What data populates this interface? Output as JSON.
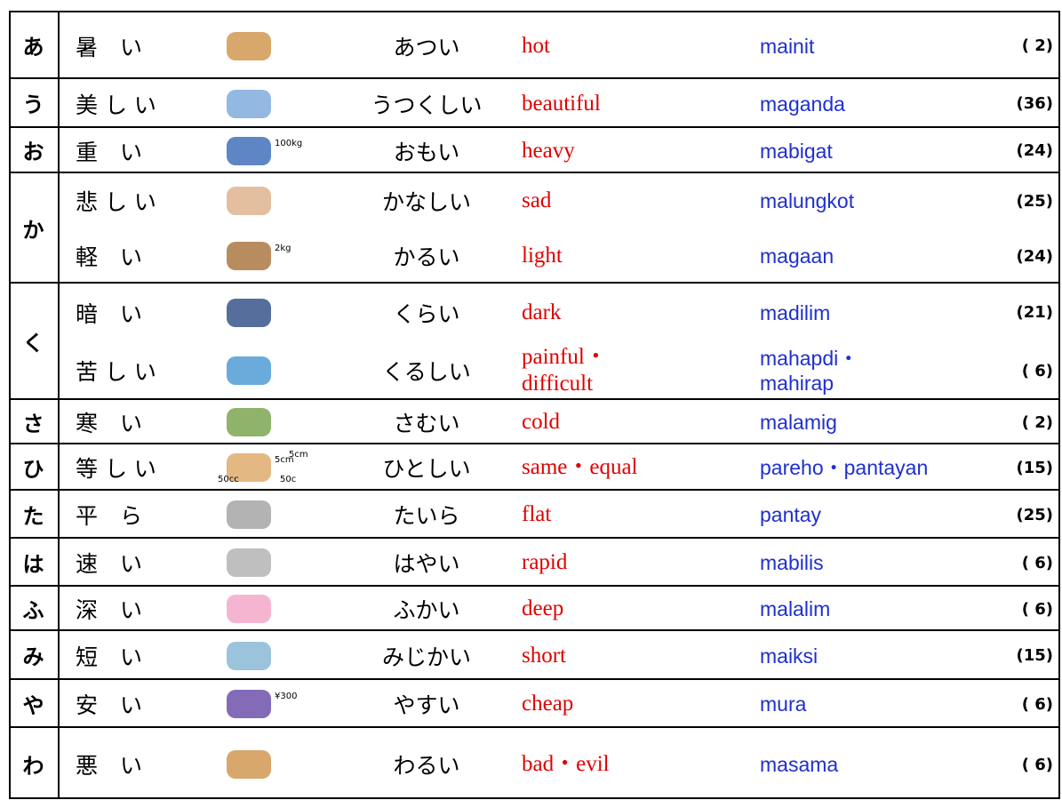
{
  "rows": [
    {
      "initial": "あ",
      "entries": [
        {
          "word": "暑　い",
          "reading": "あつい",
          "english": "hot",
          "filipino": "mainit",
          "ref": "( 2)"
        }
      ]
    },
    {
      "initial": "う",
      "entries": [
        {
          "word": "美 し い",
          "reading": "うつくしい",
          "english": "beautiful",
          "filipino": "maganda",
          "ref": "(36)"
        }
      ]
    },
    {
      "initial": "お",
      "entries": [
        {
          "word": "重　い",
          "reading": "おもい",
          "english": "heavy",
          "filipino": "mabigat",
          "ref": "(24)",
          "icon_text": [
            "100kg"
          ]
        }
      ]
    },
    {
      "initial": "か",
      "entries": [
        {
          "word": "悲 し い",
          "reading": "かなしい",
          "english": "sad",
          "filipino": "malungkot",
          "ref": "(25)"
        },
        {
          "word": "軽　い",
          "reading": "かるい",
          "english": "light",
          "filipino": "magaan",
          "ref": "(24)",
          "icon_text": [
            "2kg"
          ]
        }
      ]
    },
    {
      "initial": "く",
      "entries": [
        {
          "word": "暗　い",
          "reading": "くらい",
          "english": "dark",
          "filipino": "madilim",
          "ref": "(21)"
        },
        {
          "word": "苦 し い",
          "reading": "くるしい",
          "english": [
            "painful・",
            "difficult"
          ],
          "filipino": [
            "mahapdi・",
            "mahirap"
          ],
          "ref": "( 6)"
        }
      ]
    },
    {
      "initial": "さ",
      "entries": [
        {
          "word": "寒　い",
          "reading": "さむい",
          "english": "cold",
          "filipino": "malamig",
          "ref": "( 2)"
        }
      ]
    },
    {
      "initial": "ひ",
      "entries": [
        {
          "word": "等 し い",
          "reading": "ひとしい",
          "english": "same・equal",
          "filipino": "pareho・pantayan",
          "ref": "(15)",
          "icon_text": [
            "5cm",
            "5cm",
            "50cc",
            "50c"
          ]
        }
      ]
    },
    {
      "initial": "た",
      "entries": [
        {
          "word": "平　ら",
          "reading": "たいら",
          "english": "flat",
          "filipino": "pantay",
          "ref": "(25)"
        }
      ]
    },
    {
      "initial": "は",
      "entries": [
        {
          "word": "速　い",
          "reading": "はやい",
          "english": "rapid",
          "filipino": "mabilis",
          "ref": "( 6)"
        }
      ]
    },
    {
      "initial": "ふ",
      "entries": [
        {
          "word": "深　い",
          "reading": "ふかい",
          "english": "deep",
          "filipino": "malalim",
          "ref": "( 6)"
        }
      ]
    },
    {
      "initial": "み",
      "entries": [
        {
          "word": "短　い",
          "reading": "みじかい",
          "english": "short",
          "filipino": "maiksi",
          "ref": "(15)"
        }
      ]
    },
    {
      "initial": "や",
      "entries": [
        {
          "word": "安　い",
          "reading": "やすい",
          "english": "cheap",
          "filipino": "mura",
          "ref": "( 6)",
          "icon_text": [
            "¥300"
          ]
        }
      ]
    },
    {
      "initial": "わ",
      "entries": [
        {
          "word": "悪　い",
          "reading": "わるい",
          "english": "bad・evil",
          "filipino": "masama",
          "ref": "( 6)"
        }
      ]
    }
  ]
}
